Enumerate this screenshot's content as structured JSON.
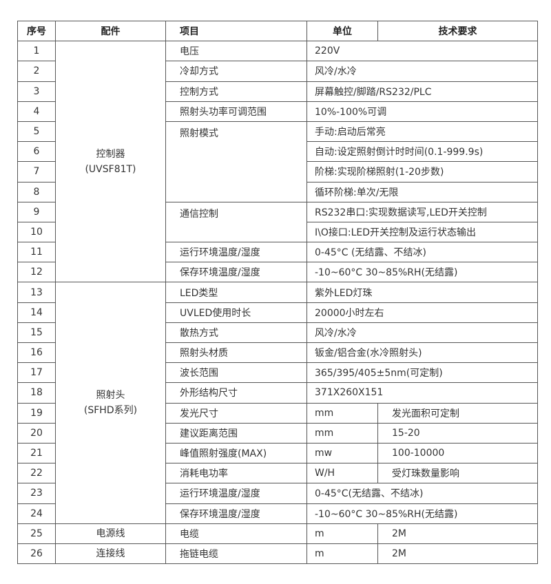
{
  "header": {
    "index": "序号",
    "part": "配件",
    "item": "项目",
    "unit": "单位",
    "spec": "技术要求"
  },
  "groups": [
    {
      "part": "控制器",
      "model": "(UVSF81T)",
      "rows": [
        {
          "no": "1",
          "item": "电压",
          "value": "220V"
        },
        {
          "no": "2",
          "item": "冷却方式",
          "value": "风冷/水冷"
        },
        {
          "no": "3",
          "item": "控制方式",
          "value": "屏幕触控/脚踏/RS232/PLC"
        },
        {
          "no": "4",
          "item": "照射头功率可调范围",
          "value": "10%-100%可调"
        },
        {
          "no": "5",
          "item": "照射模式",
          "item_span": 4,
          "value": "手动:启动后常亮"
        },
        {
          "no": "6",
          "value": "自动:设定照射倒计时时间(0.1-999.9s)"
        },
        {
          "no": "7",
          "value": "阶梯:实现阶梯照射(1-20步数)"
        },
        {
          "no": "8",
          "value": "循环阶梯:单次/无限"
        },
        {
          "no": "9",
          "item": "通信控制",
          "item_span": 2,
          "value": "RS232串口:实现数据读写,LED开关控制"
        },
        {
          "no": "10",
          "value": "I\\O接口:LED开关控制及运行状态输出"
        },
        {
          "no": "11",
          "item": "运行环境温度/湿度",
          "value": "0-45°C (无结露、不结冰)"
        },
        {
          "no": "12",
          "item": "保存环境温度/湿度",
          "value": "-10~60°C  30~85%RH(无结露)"
        }
      ]
    },
    {
      "part": "照射头",
      "model": "(SFHD系列)",
      "rows": [
        {
          "no": "13",
          "item": "LED类型",
          "value": "紫外LED灯珠"
        },
        {
          "no": "14",
          "item": "UVLED使用时长",
          "value": "20000小时左右"
        },
        {
          "no": "15",
          "item": "散热方式",
          "value": "风冷/水冷"
        },
        {
          "no": "16",
          "item": "照射头材质",
          "value": "钣金/铝合金(水冷照射头)"
        },
        {
          "no": "17",
          "item": "波长范围",
          "value": "365/395/405±5nm(可定制)"
        },
        {
          "no": "18",
          "item": "外形结构尺寸",
          "value": "371X260X151"
        },
        {
          "no": "19",
          "item": "发光尺寸",
          "unit": "mm",
          "spec": "发光面积可定制"
        },
        {
          "no": "20",
          "item": "建议距离范围",
          "unit": "mm",
          "spec": "15-20"
        },
        {
          "no": "21",
          "item": "峰值照射强度(MAX)",
          "unit": "mw",
          "spec": "100-10000"
        },
        {
          "no": "22",
          "item": "消耗电功率",
          "unit": "W/H",
          "spec": "受灯珠数量影响"
        },
        {
          "no": "23",
          "item": "运行环境温度/湿度",
          "value": "0-45°C(无结露、不结冰)"
        },
        {
          "no": "24",
          "item": "保存环境温度/湿度",
          "value": "-10~60°C  30~85%RH(无结露)"
        }
      ]
    },
    {
      "part": "电源线",
      "rows": [
        {
          "no": "25",
          "item": "电缆",
          "unit": "m",
          "spec": "2M"
        }
      ]
    },
    {
      "part": "连接线",
      "rows": [
        {
          "no": "26",
          "item": "拖链电缆",
          "unit": "m",
          "spec": "2M"
        }
      ]
    }
  ]
}
